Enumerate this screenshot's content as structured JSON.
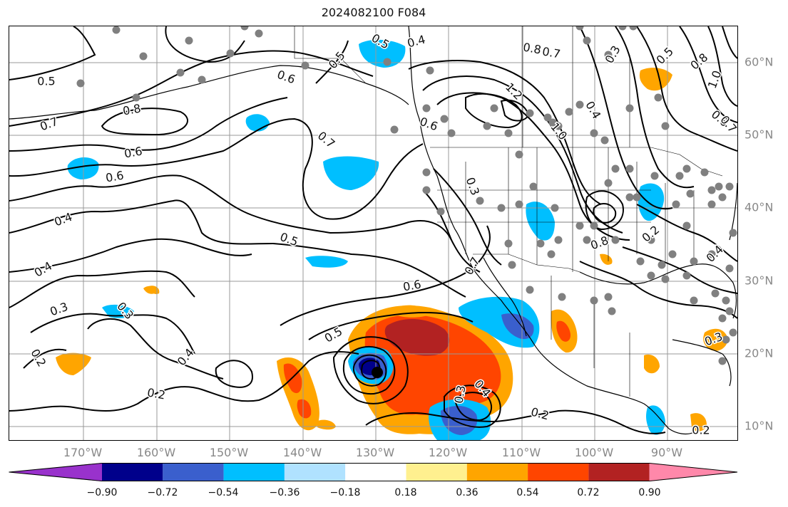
{
  "title": "2024082100 F084",
  "colors": {
    "neg090": "#9932cc",
    "neg072": "#00008b",
    "neg054": "#3a5fcd",
    "neg036": "#00bfff",
    "neg018": "#b0e2ff",
    "zero": "#ffffff",
    "pos018": "#fff08f",
    "pos036": "#ffa500",
    "pos054": "#ff4500",
    "pos072": "#b22222",
    "pos090": "#ff88aa",
    "grid": "#999999",
    "contour": "#000000",
    "station": "#808080"
  },
  "lon_labels": [
    "170°W",
    "160°W",
    "150°W",
    "140°W",
    "130°W",
    "120°W",
    "110°W",
    "100°W",
    "90°W"
  ],
  "lat_labels": [
    "60°N",
    "50°N",
    "40°N",
    "30°N",
    "20°N",
    "10°N"
  ],
  "colorbar": {
    "ticks": [
      "−0.90",
      "−0.72",
      "−0.54",
      "−0.36",
      "−0.18",
      "0.18",
      "0.36",
      "0.54",
      "0.72",
      "0.90"
    ]
  },
  "contour_labels": [
    "0.5",
    "0.4",
    "0.5",
    "0.5",
    "0.6",
    "0.8",
    "0.7",
    "0.3",
    "0.5",
    "0.8",
    "1.0",
    "0.8",
    "1.2",
    "0.7",
    "1.0",
    "0.4",
    "0.6",
    "0.7",
    "0.6",
    "0.6",
    "0.6",
    "0.7",
    "0.3",
    "0.4",
    "0.5",
    "0.8",
    "0.2",
    "0.4",
    "0.4",
    "0.3",
    "0.3",
    "0.2",
    "0.4",
    "0.6",
    "0.5",
    "0.7",
    "0.2",
    "0.3",
    "0.4",
    "0.2",
    "0.3",
    "0.2"
  ],
  "map": {
    "lon_range": [
      -180,
      -80
    ],
    "lat_range": [
      8,
      65
    ]
  }
}
